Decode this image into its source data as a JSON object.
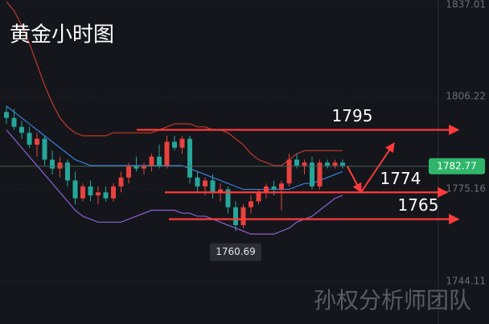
{
  "chart_data": {
    "type": "candlestick",
    "title": "黄金小时图",
    "watermark": "孙权分析师团队",
    "categories": [
      null,
      null,
      null,
      null,
      null,
      null,
      null,
      null,
      null,
      null,
      null,
      null,
      null,
      null,
      null,
      null,
      null,
      null,
      null,
      null,
      null,
      null,
      null,
      null,
      null,
      null,
      null,
      null,
      null,
      null,
      null,
      null,
      null,
      null,
      null,
      null,
      null,
      null,
      null,
      null,
      null,
      null,
      null,
      null,
      null
    ],
    "open": [
      1801,
      1799,
      1796,
      1794,
      1790,
      1792,
      1785,
      1782,
      1784,
      1778,
      1772,
      1776,
      1773,
      1774,
      1772,
      1776,
      1779,
      1783,
      1782,
      1783,
      1786,
      1783,
      1791,
      1789,
      1792,
      1779,
      1776,
      1778,
      1774,
      1775,
      1769,
      1763,
      1769,
      1771,
      1774,
      1776,
      1775,
      1777,
      1785,
      1783,
      1784,
      1776,
      1784,
      1783,
      1784
    ],
    "high": [
      1803,
      1802,
      1798,
      1796,
      1794,
      1793,
      1788,
      1786,
      1785,
      1781,
      1777,
      1778,
      1776,
      1776,
      1777,
      1781,
      1784,
      1786,
      1784,
      1787,
      1790,
      1793,
      1793,
      1793,
      1793,
      1781,
      1779,
      1780,
      1777,
      1776,
      1771,
      1770,
      1773,
      1775,
      1777,
      1778,
      1778,
      1787,
      1787,
      1785,
      1786,
      1785,
      1785,
      1785,
      1785
    ],
    "low": [
      1797,
      1795,
      1792,
      1789,
      1786,
      1783,
      1780,
      1779,
      1776,
      1770,
      1771,
      1771,
      1770,
      1771,
      1771,
      1774,
      1777,
      1781,
      1780,
      1781,
      1782,
      1782,
      1788,
      1787,
      1777,
      1774,
      1773,
      1772,
      1771,
      1767,
      1761,
      1762,
      1767,
      1770,
      1772,
      1773,
      1768,
      1776,
      1782,
      1780,
      1775,
      1775,
      1782,
      1782,
      1782
    ],
    "close": [
      1799,
      1796,
      1794,
      1790,
      1792,
      1785,
      1782,
      1784,
      1778,
      1772,
      1776,
      1773,
      1774,
      1772,
      1776,
      1779,
      1783,
      1782,
      1783,
      1786,
      1783,
      1791,
      1789,
      1792,
      1779,
      1776,
      1778,
      1774,
      1775,
      1769,
      1763,
      1769,
      1771,
      1774,
      1776,
      1775,
      1777,
      1785,
      1783,
      1784,
      1776,
      1784,
      1783,
      1784,
      1783
    ],
    "up_color": "#e8423f",
    "down_color": "#26a69a",
    "bands": [
      {
        "color": "#c0392b",
        "values": [
          1838,
          1835,
          1830,
          1824,
          1817,
          1810,
          1804,
          1799,
          1796,
          1794,
          1793,
          1793,
          1793,
          1793,
          1794,
          1794,
          1794,
          1794,
          1794,
          1794,
          1795,
          1796,
          1797,
          1797,
          1797,
          1796,
          1796,
          1795,
          1795,
          1794,
          1792,
          1790,
          1787,
          1785,
          1784,
          1783,
          1783,
          1785,
          1787,
          1788,
          1788,
          1788,
          1788,
          1788,
          1788
        ]
      },
      {
        "color": "#3d7fe0",
        "values": [
          1803,
          1801,
          1799,
          1797,
          1795,
          1793,
          1791,
          1789,
          1787,
          1785,
          1784,
          1783,
          1783,
          1783,
          1783,
          1783,
          1783,
          1783,
          1783,
          1783,
          1783,
          1783,
          1783,
          1783,
          1782,
          1781,
          1780,
          1779,
          1778,
          1777,
          1776,
          1775,
          1775,
          1775,
          1775,
          1775,
          1775,
          1775,
          1776,
          1777,
          1777,
          1778,
          1779,
          1780,
          1781
        ]
      },
      {
        "color": "#8e5fd6",
        "values": [
          1795,
          1792,
          1789,
          1786,
          1783,
          1780,
          1777,
          1774,
          1771,
          1768,
          1766,
          1765,
          1764,
          1764,
          1764,
          1764,
          1765,
          1766,
          1767,
          1768,
          1768,
          1768,
          1768,
          1767,
          1767,
          1766,
          1766,
          1765,
          1764,
          1763,
          1762,
          1761,
          1760,
          1760,
          1760,
          1760,
          1761,
          1762,
          1764,
          1765,
          1766,
          1768,
          1770,
          1772,
          1773
        ]
      }
    ],
    "ylim": [
      1729.8,
      1838.6
    ],
    "yticks": [
      1837.01,
      1806.22,
      1775.16,
      1744.11
    ],
    "last_price": 1782.77,
    "last_price_color": "#2fb66b",
    "low_label": 1760.69,
    "levels": [
      1795,
      1774,
      1765
    ],
    "level_color": "#ff3b3b"
  }
}
